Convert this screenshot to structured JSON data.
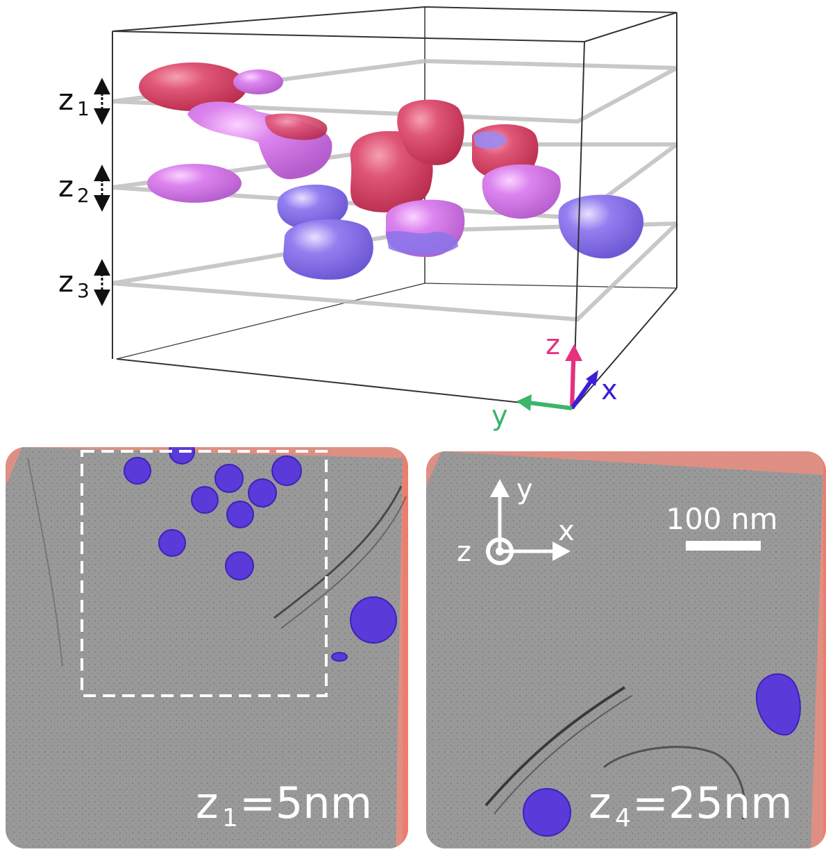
{
  "top_panel": {
    "slice_labels": [
      {
        "main": "z",
        "sub": "1"
      },
      {
        "main": "z",
        "sub": "2"
      },
      {
        "main": "z",
        "sub": "3"
      }
    ],
    "axes": {
      "z": "z",
      "x": "x",
      "y": "y"
    },
    "colors": {
      "z_axis": "#e8307e",
      "x_axis": "#3a1fd8",
      "y_axis": "#3bb56c",
      "red_blob": "#d84468",
      "pink_blob": "#d77ce8",
      "blue_blob": "#8a76ea"
    }
  },
  "left_panel": {
    "depth_label": {
      "main": "z",
      "sub": "1",
      "value": "=5nm"
    }
  },
  "right_panel": {
    "depth_label": {
      "main": "z",
      "sub": "4",
      "value": "=25nm"
    },
    "scale_bar": "100 nm",
    "axes": {
      "y": "y",
      "x": "x",
      "z": "z"
    }
  }
}
